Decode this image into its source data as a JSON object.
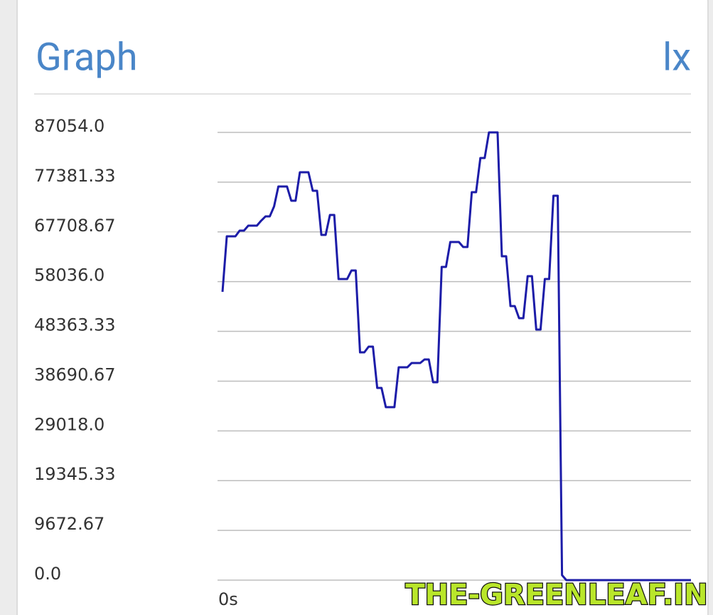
{
  "chart_data": {
    "type": "line",
    "title": "Graph",
    "unit": "lx",
    "x_label": "0s",
    "color": "#1c1ca8",
    "grid": true,
    "ylim": [
      0,
      87054
    ],
    "yticks": [
      {
        "value": 0,
        "label": "0.0"
      },
      9672.67,
      19345.33,
      {
        "value": 29018,
        "label": "29018.0"
      },
      38690.67,
      48363.33,
      {
        "value": 58036,
        "label": "58036.0"
      },
      67708.67,
      77381.33,
      {
        "value": 87054,
        "label": "87054.0"
      }
    ],
    "values": [
      56050,
      66850,
      66850,
      66850,
      67960,
      67960,
      68920,
      68920,
      68920,
      69890,
      70720,
      70720,
      72660,
      76540,
      76540,
      76540,
      73770,
      73770,
      79300,
      79300,
      79300,
      75700,
      75700,
      67120,
      67120,
      71000,
      71000,
      58540,
      58540,
      58540,
      60200,
      60200,
      44290,
      44290,
      45400,
      45400,
      37370,
      37370,
      33630,
      33630,
      33630,
      41380,
      41380,
      41380,
      42210,
      42210,
      42210,
      42900,
      42900,
      38480,
      38480,
      60900,
      60900,
      65740,
      65740,
      65740,
      64770,
      64770,
      75430,
      75430,
      82070,
      82070,
      87054,
      87054,
      87054,
      62970,
      62970,
      53280,
      53280,
      50930,
      50930,
      59100,
      59100,
      48720,
      48720,
      58540,
      58540,
      74740,
      74740,
      970,
      0,
      0,
      0,
      0,
      0,
      0,
      0,
      0,
      0,
      0,
      0,
      0,
      0,
      0,
      0,
      0,
      0,
      0,
      0,
      0,
      0,
      0,
      0,
      0,
      0,
      0,
      0,
      0,
      0,
      0
    ]
  },
  "watermark": "THE-GREENLEAF.IN"
}
